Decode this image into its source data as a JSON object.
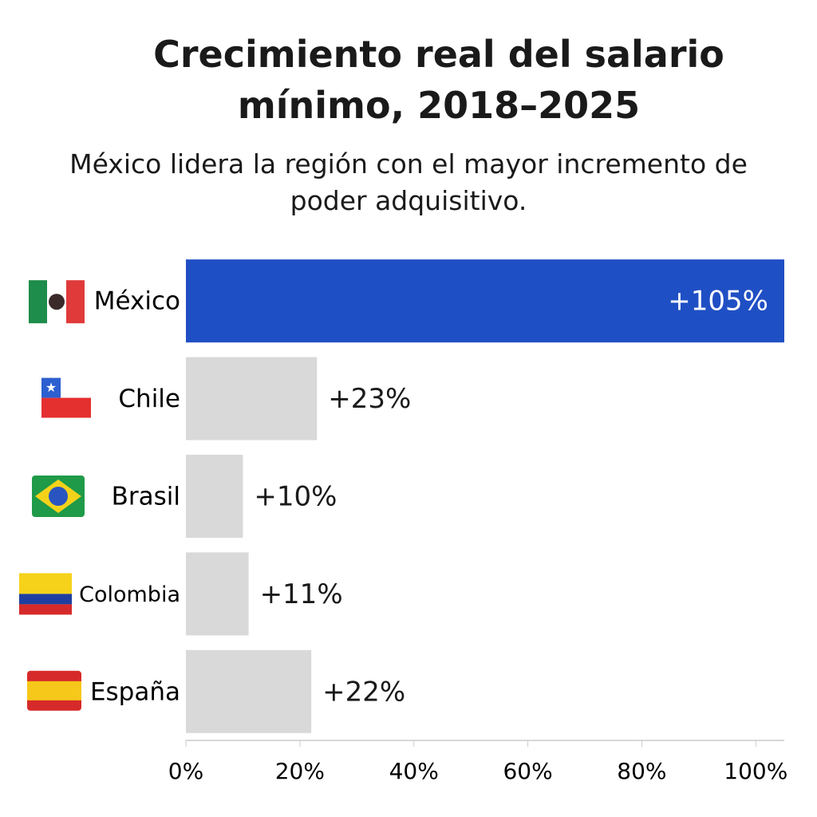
{
  "chart_data": {
    "type": "barh",
    "title": "Crecimiento real del salario mínimo, 2018–2025",
    "subtitle": "México lidera la región con el mayor incremento de poder adquisitivo.",
    "categories": [
      "México",
      "Chile",
      "Brasil",
      "Colombia",
      "España"
    ],
    "values": [
      105,
      23,
      10,
      11,
      22
    ],
    "value_labels": [
      "+105%",
      "+23%",
      "+10%",
      "+11%",
      "+22%"
    ],
    "colors": [
      "#1f4fc4",
      "#d9d9d9",
      "#d9d9d9",
      "#d9d9d9",
      "#d9d9d9"
    ],
    "xlim": [
      0,
      105
    ],
    "xticks": [
      {
        "value": 0,
        "label": "0%"
      },
      {
        "value": 20,
        "label": "20%"
      },
      {
        "value": 40,
        "label": "40%"
      },
      {
        "value": 60,
        "label": "60%"
      },
      {
        "value": 80,
        "label": "80%"
      },
      {
        "value": 100,
        "label": "100%"
      }
    ]
  }
}
